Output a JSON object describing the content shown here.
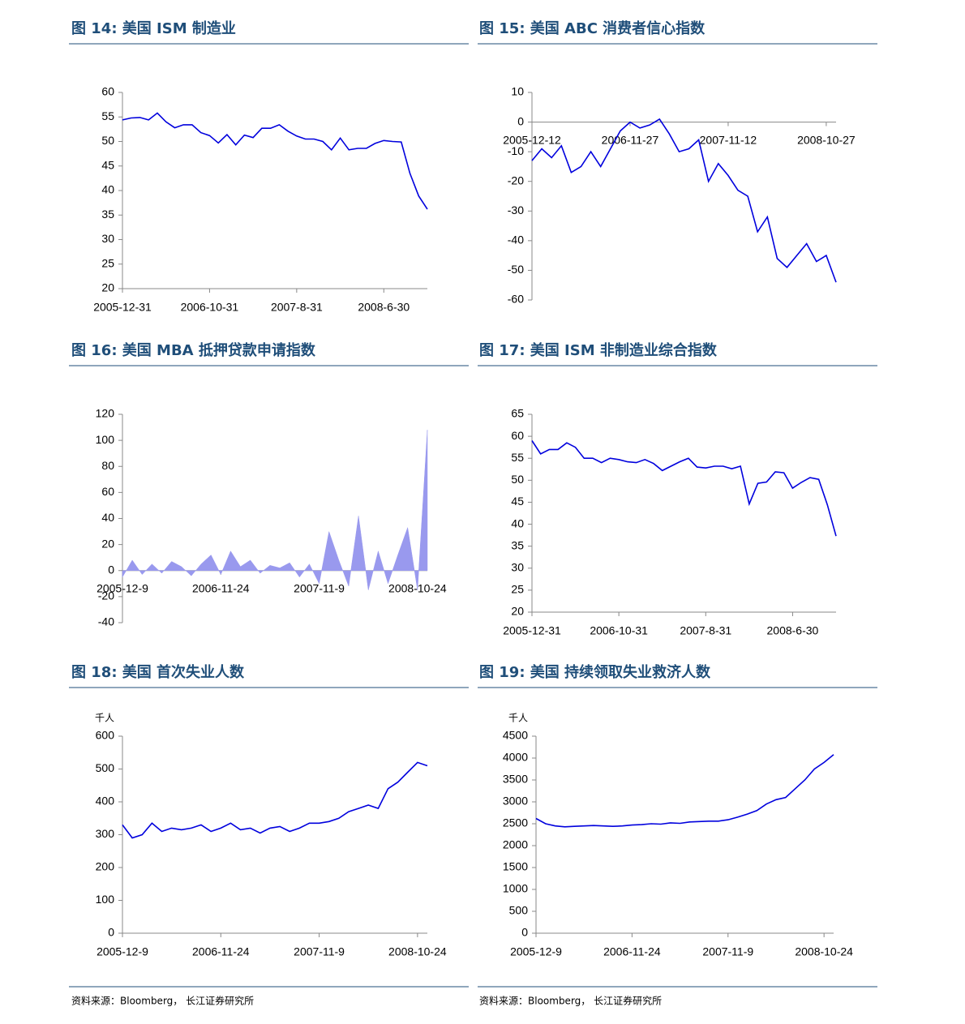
{
  "chart_data": [
    {
      "type": "line",
      "title": "图 14: 美国 ISM 制造业",
      "color": "#0000dd",
      "ylim": [
        20,
        60
      ],
      "yticks": [
        20,
        25,
        30,
        35,
        40,
        45,
        50,
        55,
        60
      ],
      "categories": [
        "2005-12-31",
        null,
        null,
        null,
        null,
        null,
        null,
        null,
        null,
        null,
        "2006-10-31",
        null,
        null,
        null,
        null,
        null,
        null,
        null,
        null,
        null,
        "2007-8-31",
        null,
        null,
        null,
        null,
        null,
        null,
        null,
        null,
        null,
        "2008-6-30",
        null,
        null,
        null,
        null,
        null
      ],
      "values": [
        54.4,
        54.8,
        54.9,
        54.4,
        55.8,
        54.0,
        52.8,
        53.4,
        53.4,
        51.8,
        51.2,
        49.7,
        51.4,
        49.3,
        51.3,
        50.8,
        52.7,
        52.7,
        53.4,
        52.1,
        51.1,
        50.5,
        50.5,
        50.0,
        48.3,
        50.7,
        48.3,
        48.6,
        48.6,
        49.6,
        50.2,
        50.0,
        49.9,
        43.5,
        38.9,
        36.2
      ]
    },
    {
      "type": "line",
      "title": "图 15: 美国 ABC 消费者信心指数",
      "color": "#0000dd",
      "ylim": [
        -60,
        10
      ],
      "yticks": [
        -60,
        -50,
        -40,
        -30,
        -20,
        -10,
        0,
        10
      ],
      "categories": [
        "2005-12-12",
        null,
        null,
        null,
        null,
        null,
        null,
        null,
        null,
        null,
        "2006-11-27",
        null,
        null,
        null,
        null,
        null,
        null,
        null,
        null,
        null,
        "2007-11-12",
        null,
        null,
        null,
        null,
        null,
        null,
        null,
        null,
        null,
        "2008-10-27",
        null
      ],
      "values": [
        -13,
        -9,
        -12,
        -8,
        -17,
        -15,
        -10,
        -15,
        -9,
        -3,
        0,
        -2,
        -1,
        1,
        -4,
        -10,
        -9,
        -6,
        -20,
        -14,
        -18,
        -23,
        -25,
        -37,
        -32,
        -46,
        -49,
        -45,
        -41,
        -47,
        -45,
        -54
      ]
    },
    {
      "type": "area",
      "title": "图 16: 美国 MBA 抵押贷款申请指数",
      "color": "#9999ee",
      "ylim": [
        -40,
        120
      ],
      "yticks": [
        -40,
        -20,
        0,
        20,
        40,
        60,
        80,
        100,
        120
      ],
      "categories": [
        "2005-12-9",
        null,
        null,
        null,
        null,
        null,
        null,
        null,
        null,
        null,
        "2006-11-24",
        null,
        null,
        null,
        null,
        null,
        null,
        null,
        null,
        null,
        "2007-11-9",
        null,
        null,
        null,
        null,
        null,
        null,
        null,
        null,
        null,
        "2008-10-24",
        null
      ],
      "values": [
        -5,
        8,
        -3,
        5,
        -2,
        7,
        3,
        -4,
        5,
        12,
        -3,
        15,
        3,
        8,
        -2,
        4,
        2,
        6,
        -5,
        5,
        -10,
        30,
        8,
        -12,
        42,
        -15,
        15,
        -10,
        12,
        33,
        -15,
        108
      ]
    },
    {
      "type": "line",
      "title": "图 17: 美国 ISM 非制造业综合指数",
      "color": "#0000dd",
      "ylim": [
        20,
        65
      ],
      "yticks": [
        20,
        25,
        30,
        35,
        40,
        45,
        50,
        55,
        60,
        65
      ],
      "categories": [
        "2005-12-31",
        null,
        null,
        null,
        null,
        null,
        null,
        null,
        null,
        null,
        "2006-10-31",
        null,
        null,
        null,
        null,
        null,
        null,
        null,
        null,
        null,
        "2007-8-31",
        null,
        null,
        null,
        null,
        null,
        null,
        null,
        null,
        null,
        "2008-6-30",
        null,
        null,
        null,
        null,
        null
      ],
      "values": [
        59,
        56,
        57,
        57,
        58.5,
        57.5,
        55,
        55,
        54,
        55,
        54.7,
        54.2,
        54,
        54.7,
        53.8,
        52.2,
        53.2,
        54.2,
        55,
        53,
        52.8,
        53.2,
        53.2,
        52.6,
        53.2,
        44.6,
        49.3,
        49.6,
        51.9,
        51.7,
        48.2,
        49.5,
        50.6,
        50.2,
        44.4,
        37.3
      ]
    },
    {
      "type": "line",
      "title": "图 18: 美国 首次失业人数",
      "y_label": "千人",
      "color": "#0000dd",
      "ylim": [
        0,
        600
      ],
      "yticks": [
        0,
        100,
        200,
        300,
        400,
        500,
        600
      ],
      "categories": [
        "2005-12-9",
        null,
        null,
        null,
        null,
        null,
        null,
        null,
        null,
        null,
        "2006-11-24",
        null,
        null,
        null,
        null,
        null,
        null,
        null,
        null,
        null,
        "2007-11-9",
        null,
        null,
        null,
        null,
        null,
        null,
        null,
        null,
        null,
        "2008-10-24",
        null
      ],
      "values": [
        330,
        290,
        300,
        335,
        310,
        320,
        315,
        320,
        330,
        310,
        320,
        335,
        315,
        320,
        305,
        320,
        325,
        310,
        320,
        335,
        335,
        340,
        350,
        370,
        380,
        390,
        380,
        440,
        460,
        490,
        520,
        510
      ]
    },
    {
      "type": "line",
      "title": "图 19: 美国 持续领取失业救济人数",
      "y_label": "千人",
      "color": "#0000dd",
      "ylim": [
        0,
        4500
      ],
      "yticks": [
        0,
        500,
        1000,
        1500,
        2000,
        2500,
        3000,
        3500,
        4000,
        4500
      ],
      "categories": [
        "2005-12-9",
        null,
        null,
        null,
        null,
        null,
        null,
        null,
        null,
        null,
        "2006-11-24",
        null,
        null,
        null,
        null,
        null,
        null,
        null,
        null,
        null,
        "2007-11-9",
        null,
        null,
        null,
        null,
        null,
        null,
        null,
        null,
        null,
        "2008-10-24",
        null
      ],
      "values": [
        2620,
        2500,
        2450,
        2430,
        2440,
        2450,
        2460,
        2450,
        2440,
        2450,
        2470,
        2480,
        2500,
        2490,
        2520,
        2510,
        2540,
        2550,
        2560,
        2560,
        2590,
        2650,
        2720,
        2800,
        2950,
        3050,
        3100,
        3300,
        3500,
        3750,
        3900,
        4080
      ]
    }
  ],
  "sources": [
    "资料来源：Bloomberg， 长江证券研究所",
    "资料来源：Bloomberg， 长江证券研究所"
  ]
}
